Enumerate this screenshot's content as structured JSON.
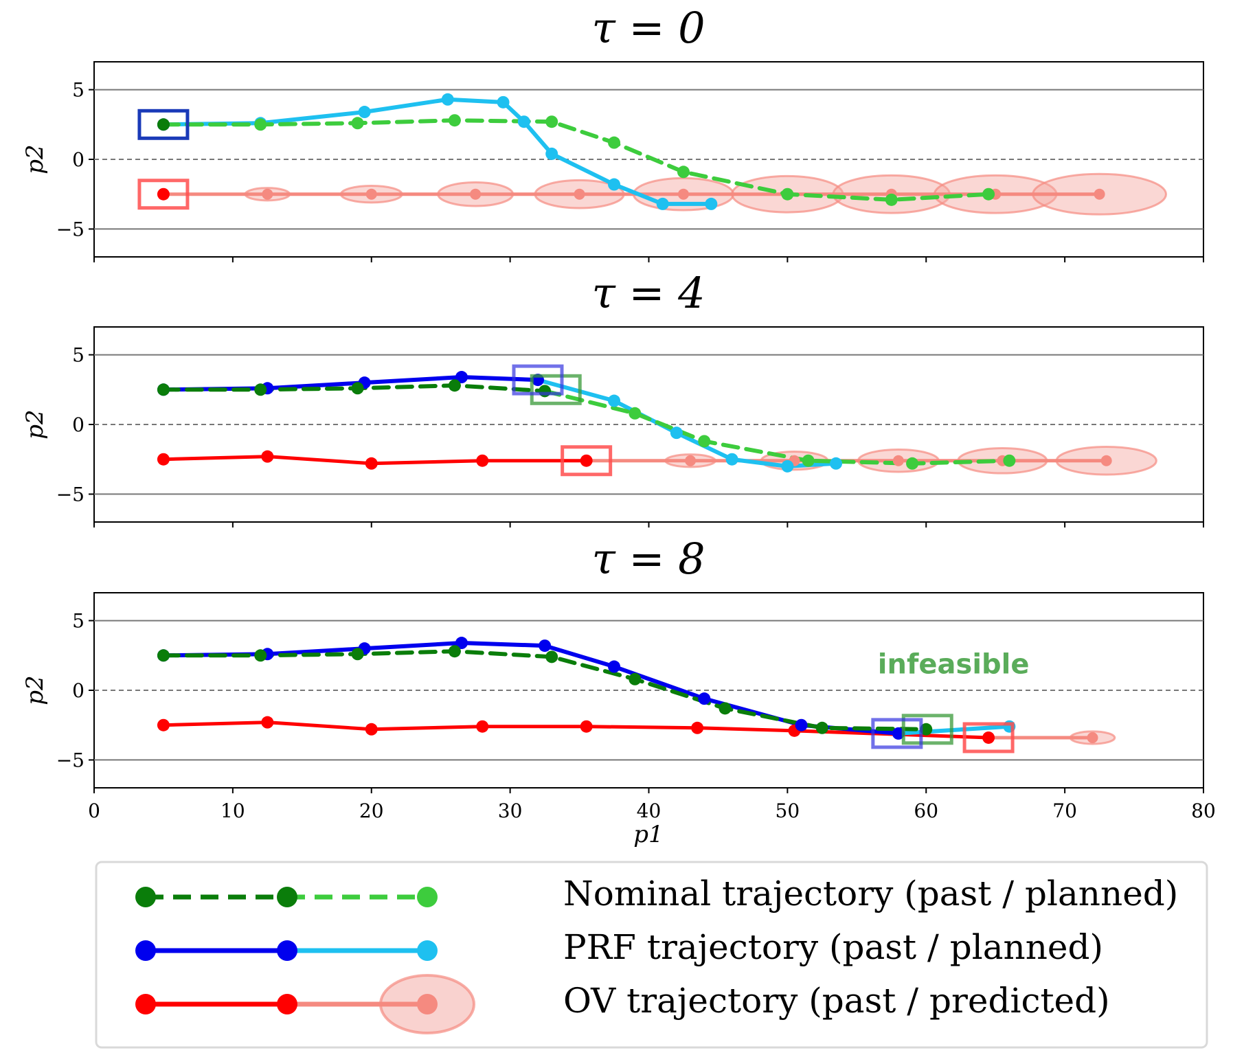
{
  "chart_data": {
    "type": "line",
    "xlabel": "p1",
    "ylabel": "p2",
    "xlim": [
      0,
      80
    ],
    "ylim": [
      -7,
      7
    ],
    "xticks": [
      0,
      10,
      20,
      30,
      40,
      50,
      60,
      70,
      80
    ],
    "yticks": [
      -5,
      0,
      5
    ],
    "grid": "horizontal lines at y = -5 and 5, dashed centerline at y = 0",
    "colors": {
      "nominal_past": "#0a7d0a",
      "nominal_planned": "#3dcc3d",
      "prf_past": "#0000ee",
      "prf_planned": "#1ec0f0",
      "ov_past": "#ff0000",
      "ov_predicted": "#f58a80",
      "ellipse_fill": "#f4a6a0",
      "annotation": "#5aac5a"
    },
    "legend": {
      "position": "bottom",
      "entries": [
        "Nominal trajectory (past / planned)",
        "PRF trajectory (past / planned)",
        "OV trajectory (past / predicted)"
      ]
    },
    "panels": [
      {
        "title": "τ = 0",
        "nominal_past": [
          [
            5,
            2.5
          ]
        ],
        "nominal_planned": [
          [
            5,
            2.5
          ],
          [
            12,
            2.5
          ],
          [
            19,
            2.6
          ],
          [
            26,
            2.8
          ],
          [
            33,
            2.7
          ],
          [
            37.5,
            1.2
          ],
          [
            42.5,
            -0.9
          ],
          [
            50,
            -2.5
          ],
          [
            57.5,
            -2.9
          ],
          [
            64.5,
            -2.5
          ]
        ],
        "prf_past": [
          [
            5,
            2.5
          ]
        ],
        "prf_planned": [
          [
            5,
            2.5
          ],
          [
            12,
            2.6
          ],
          [
            19.5,
            3.4
          ],
          [
            25.5,
            4.3
          ],
          [
            29.5,
            4.1
          ],
          [
            31,
            2.7
          ],
          [
            33,
            0.4
          ],
          [
            37.5,
            -1.8
          ],
          [
            41,
            -3.2
          ],
          [
            44.5,
            -3.2
          ]
        ],
        "ov_past": [
          [
            5,
            -2.5
          ]
        ],
        "ov_predicted": [
          [
            5,
            -2.5
          ],
          [
            12.5,
            -2.5
          ],
          [
            20,
            -2.5
          ],
          [
            27.5,
            -2.5
          ],
          [
            35,
            -2.5
          ],
          [
            42.5,
            -2.5
          ],
          [
            50,
            -2.5
          ],
          [
            57.5,
            -2.5
          ],
          [
            65,
            -2.5
          ],
          [
            72.5,
            -2.5
          ]
        ],
        "ov_uncertainty": [
          [
            12.5,
            1.6,
            0.9
          ],
          [
            20,
            2.2,
            1.2
          ],
          [
            27.5,
            2.7,
            1.7
          ],
          [
            35,
            3.2,
            2.0
          ],
          [
            42.5,
            3.6,
            2.3
          ],
          [
            50,
            4.0,
            2.6
          ],
          [
            57.5,
            4.2,
            2.7
          ],
          [
            65,
            4.4,
            2.7
          ],
          [
            72.5,
            4.8,
            2.9
          ]
        ],
        "current_markers": {
          "prf": [
            5,
            2.5
          ],
          "ov": [
            5,
            -2.5
          ]
        }
      },
      {
        "title": "τ = 4",
        "nominal_past": [
          [
            5,
            2.5
          ],
          [
            12,
            2.5
          ],
          [
            19,
            2.6
          ],
          [
            26,
            2.8
          ],
          [
            32.5,
            2.4
          ]
        ],
        "nominal_planned": [
          [
            32.5,
            2.4
          ],
          [
            39,
            0.8
          ],
          [
            44,
            -1.2
          ],
          [
            51.5,
            -2.6
          ],
          [
            59,
            -2.8
          ],
          [
            66,
            -2.6
          ]
        ],
        "prf_past": [
          [
            5,
            2.5
          ],
          [
            12.5,
            2.6
          ],
          [
            19.5,
            3.0
          ],
          [
            26.5,
            3.4
          ],
          [
            32,
            3.2
          ]
        ],
        "prf_planned": [
          [
            32,
            3.2
          ],
          [
            37.5,
            1.7
          ],
          [
            42,
            -0.6
          ],
          [
            46,
            -2.5
          ],
          [
            50,
            -3.0
          ],
          [
            53.5,
            -2.8
          ]
        ],
        "ov_past": [
          [
            5,
            -2.5
          ],
          [
            12.5,
            -2.3
          ],
          [
            20,
            -2.8
          ],
          [
            28,
            -2.6
          ],
          [
            35.5,
            -2.6
          ]
        ],
        "ov_predicted": [
          [
            35.5,
            -2.6
          ],
          [
            43,
            -2.6
          ],
          [
            50.5,
            -2.6
          ],
          [
            58,
            -2.6
          ],
          [
            65.5,
            -2.6
          ],
          [
            73,
            -2.6
          ]
        ],
        "ov_uncertainty": [
          [
            43,
            1.8,
            0.9
          ],
          [
            50.5,
            2.4,
            1.3
          ],
          [
            58,
            2.9,
            1.6
          ],
          [
            65.5,
            3.2,
            1.8
          ],
          [
            73,
            3.6,
            2.0
          ]
        ],
        "current_markers": {
          "prf": [
            32,
            3.2
          ],
          "nominal": [
            33.3,
            2.5
          ],
          "ov": [
            35.5,
            -2.6
          ]
        }
      },
      {
        "title": "τ = 8",
        "nominal_past": [
          [
            5,
            2.5
          ],
          [
            12,
            2.5
          ],
          [
            19,
            2.6
          ],
          [
            26,
            2.8
          ],
          [
            33,
            2.4
          ],
          [
            39,
            0.8
          ],
          [
            45.5,
            -1.3
          ],
          [
            52.5,
            -2.7
          ],
          [
            60,
            -2.8
          ]
        ],
        "nominal_planned": [],
        "prf_past": [
          [
            5,
            2.5
          ],
          [
            12.5,
            2.6
          ],
          [
            19.5,
            3.0
          ],
          [
            26.5,
            3.4
          ],
          [
            32.5,
            3.2
          ],
          [
            37.5,
            1.7
          ],
          [
            44,
            -0.6
          ],
          [
            51,
            -2.5
          ],
          [
            58,
            -3.1
          ]
        ],
        "prf_planned": [
          [
            58,
            -3.1
          ],
          [
            66,
            -2.6
          ]
        ],
        "ov_past": [
          [
            5,
            -2.5
          ],
          [
            12.5,
            -2.3
          ],
          [
            20,
            -2.8
          ],
          [
            28,
            -2.6
          ],
          [
            35.5,
            -2.6
          ],
          [
            43.5,
            -2.7
          ],
          [
            50.5,
            -2.9
          ],
          [
            64.5,
            -3.4
          ]
        ],
        "ov_predicted": [
          [
            64.5,
            -3.4
          ],
          [
            72,
            -3.4
          ]
        ],
        "ov_uncertainty": [
          [
            72,
            1.6,
            0.9
          ]
        ],
        "current_markers": {
          "prf": [
            57.9,
            -3.1
          ],
          "nominal": [
            60.1,
            -2.8
          ],
          "ov": [
            64.5,
            -3.4
          ]
        },
        "annotation": {
          "text": "infeasible",
          "at": [
            59.5,
            1.2
          ]
        }
      }
    ]
  }
}
